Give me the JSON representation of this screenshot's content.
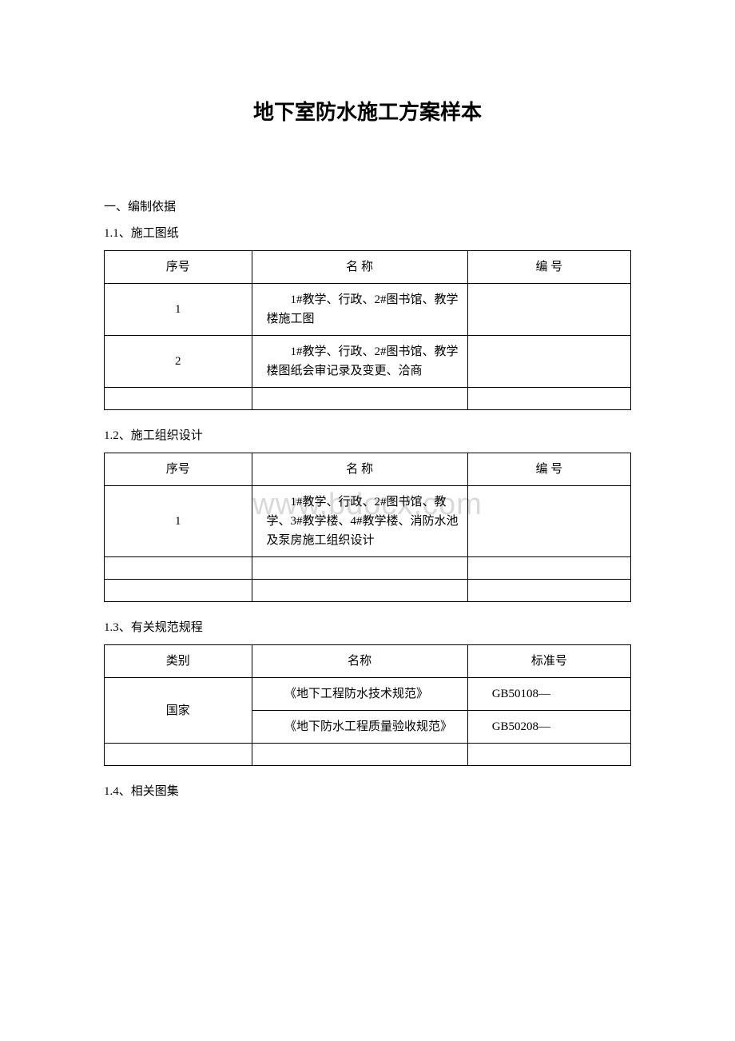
{
  "title": "地下室防水施工方案样本",
  "watermark": "www.bdocx.com",
  "section1": {
    "heading": "一、编制依据",
    "sub1": {
      "heading": "1.1、施工图纸",
      "headers": [
        "序号",
        "名 称",
        "编 号"
      ],
      "rows": [
        {
          "col1": "1",
          "col2": "　　1#教学、行政、2#图书馆、教学楼施工图",
          "col3": ""
        },
        {
          "col1": "2",
          "col2": "　　1#教学、行政、2#图书馆、教学楼图纸会审记录及变更、洽商",
          "col3": ""
        }
      ]
    },
    "sub2": {
      "heading": "1.2、施工组织设计",
      "headers": [
        "序号",
        "名 称",
        "编 号"
      ],
      "rows": [
        {
          "col1": "1",
          "col2": "　　1#教学、行政、2#图书馆、教学、3#教学楼、4#教学楼、消防水池及泵房施工组织设计",
          "col3": ""
        }
      ]
    },
    "sub3": {
      "heading": "1.3、有关规范规程",
      "headers": [
        "类别",
        "名称",
        "标准号"
      ],
      "rows": [
        {
          "col1": "国家",
          "col2a": "　　《地下工程防水技术规范》",
          "col3a": "GB50108—",
          "col2b": "　　《地下防水工程质量验收规范》",
          "col3b": "GB50208—"
        }
      ]
    },
    "sub4": {
      "heading": "1.4、相关图集"
    }
  }
}
